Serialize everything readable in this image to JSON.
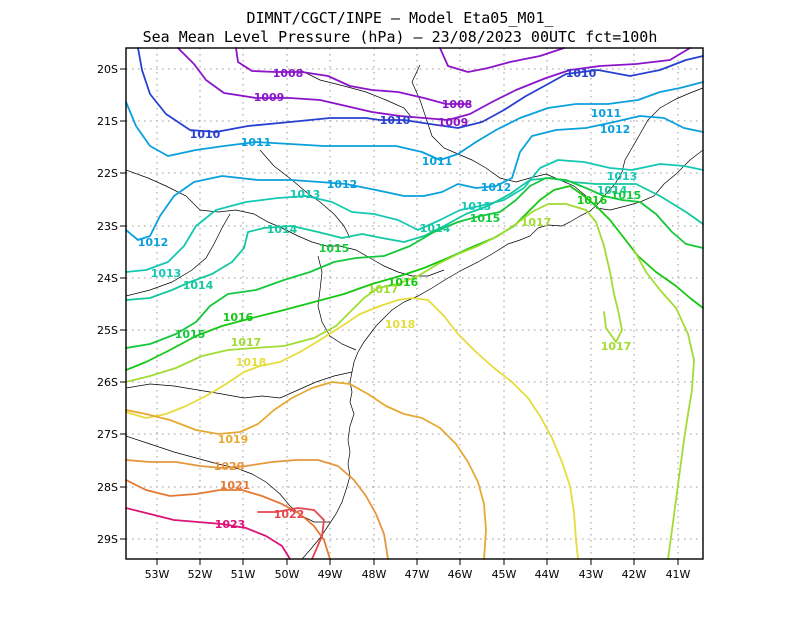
{
  "title": {
    "line1": "DIMNT/CGCT/INPE –  Model Eta05_M01_",
    "line2": "Sea Mean Level Pressure (hPa) – 23/08/2023 00UTC fct=100h"
  },
  "axes": {
    "lat_ticks": [
      "20S",
      "21S",
      "22S",
      "23S",
      "24S",
      "25S",
      "26S",
      "27S",
      "28S",
      "29S"
    ],
    "lon_ticks": [
      "53W",
      "52W",
      "51W",
      "50W",
      "49W",
      "48W",
      "47W",
      "46W",
      "45W",
      "44W",
      "43W",
      "42W",
      "41W"
    ]
  },
  "colors": {
    "1008": "#8c14c8",
    "1009": "#8c14c8",
    "1010": "#2840d0",
    "1011": "#0aa0dc",
    "1012": "#0aa0dc",
    "1013": "#14c8b4",
    "1014": "#14c8a0",
    "1015": "#14c83c",
    "1016": "#14c814",
    "1017": "#a0dc32",
    "1018": "#e6dc3c",
    "1019": "#e6aa32",
    "1020": "#e6963c",
    "1021": "#e67832",
    "1022": "#e64650",
    "1023": "#dc1478"
  },
  "chart_data": {
    "type": "contour",
    "variable": "Sea Mean Level Pressure (hPa)",
    "lon_range": [
      -53.6,
      -40.4
    ],
    "lat_range": [
      -29.4,
      -19.7
    ],
    "levels": [
      1008,
      1009,
      1010,
      1011,
      1012,
      1013,
      1014,
      1015,
      1016,
      1017,
      1018,
      1019,
      1020,
      1021,
      1022,
      1023
    ],
    "labels": [
      {
        "text": "1008",
        "value": 1008
      },
      {
        "text": "1008",
        "value": 1008
      },
      {
        "text": "1009",
        "value": 1009
      },
      {
        "text": "1009",
        "value": 1009
      },
      {
        "text": "1010",
        "value": 1010
      },
      {
        "text": "1010",
        "value": 1010
      },
      {
        "text": "1010",
        "value": 1010
      },
      {
        "text": "1011",
        "value": 1011
      },
      {
        "text": "1011",
        "value": 1011
      },
      {
        "text": "1011",
        "value": 1011
      },
      {
        "text": "1012",
        "value": 1012
      },
      {
        "text": "1012",
        "value": 1012
      },
      {
        "text": "1012",
        "value": 1012
      },
      {
        "text": "1012",
        "value": 1012
      },
      {
        "text": "1013",
        "value": 1013
      },
      {
        "text": "1013",
        "value": 1013
      },
      {
        "text": "1013",
        "value": 1013
      },
      {
        "text": "1013",
        "value": 1013
      },
      {
        "text": "1014",
        "value": 1014
      },
      {
        "text": "1014",
        "value": 1014
      },
      {
        "text": "1014",
        "value": 1014
      },
      {
        "text": "1014",
        "value": 1014
      },
      {
        "text": "1015",
        "value": 1015
      },
      {
        "text": "1015",
        "value": 1015
      },
      {
        "text": "1015",
        "value": 1015
      },
      {
        "text": "1015",
        "value": 1015
      },
      {
        "text": "1016",
        "value": 1016
      },
      {
        "text": "1016",
        "value": 1016
      },
      {
        "text": "1016",
        "value": 1016
      },
      {
        "text": "1017",
        "value": 1017
      },
      {
        "text": "1017",
        "value": 1017
      },
      {
        "text": "1017",
        "value": 1017
      },
      {
        "text": "1017",
        "value": 1017
      },
      {
        "text": "1018",
        "value": 1018
      },
      {
        "text": "1018",
        "value": 1018
      },
      {
        "text": "1019",
        "value": 1019
      },
      {
        "text": "1020",
        "value": 1020
      },
      {
        "text": "1021",
        "value": 1021
      },
      {
        "text": "1022",
        "value": 1022
      },
      {
        "text": "1023",
        "value": 1023
      }
    ]
  }
}
